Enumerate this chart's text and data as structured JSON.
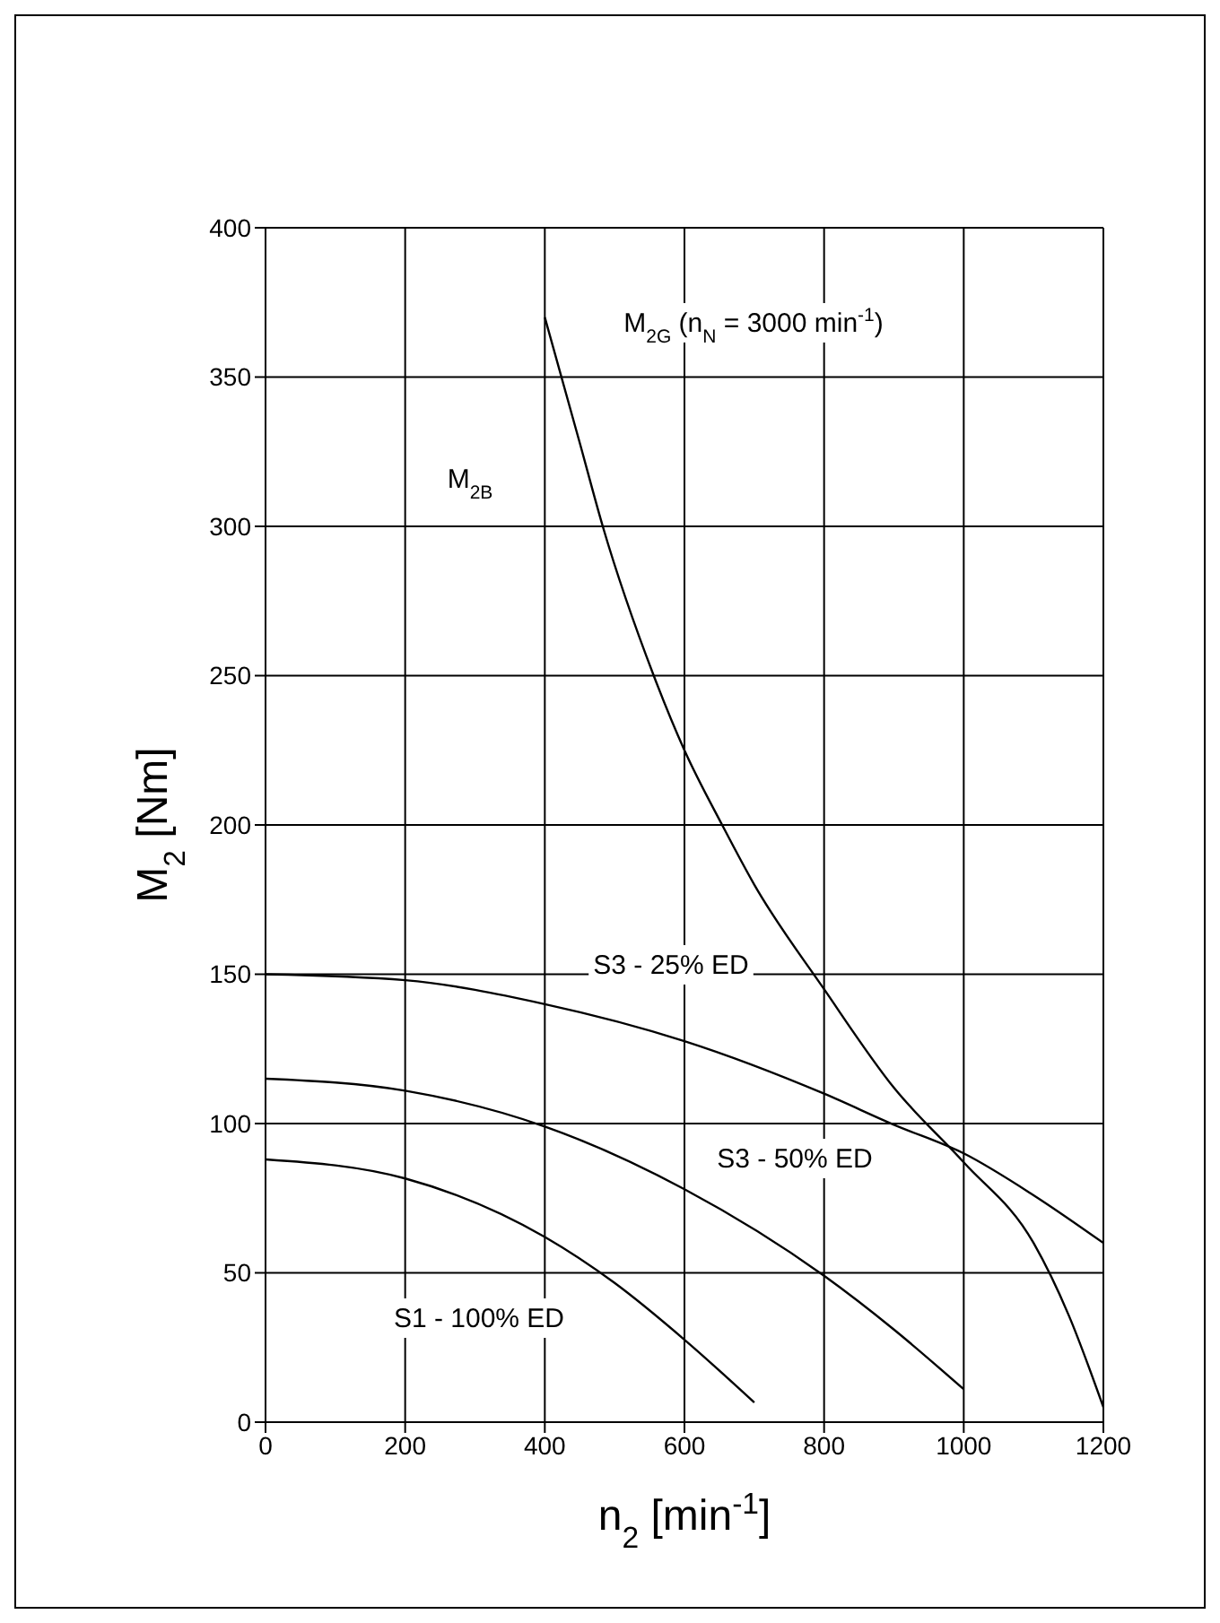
{
  "chart_data": {
    "type": "line",
    "xlabel": "n$_{2}$ [min$^{-1}$]",
    "ylabel": "M$_{2}$ [Nm]",
    "xlim": [
      0,
      1200
    ],
    "xticks": [
      0,
      200,
      400,
      600,
      800,
      1000,
      1200
    ],
    "ylim": [
      0,
      400
    ],
    "yticks": [
      0,
      50,
      100,
      150,
      200,
      250,
      300,
      350,
      400
    ],
    "grid": true,
    "marker": "none",
    "line_style": "solid",
    "series": [
      {
        "name": "S3 - 25% ED",
        "color": "#000000",
        "x": [
          0,
          200,
          400,
          600,
          800,
          900,
          1000,
          1100,
          1200
        ],
        "values": [
          150,
          148,
          140,
          127.6,
          110,
          99.6,
          90,
          76,
          60
        ]
      },
      {
        "name": "S3 - 50% ED",
        "color": "#000000",
        "x": [
          0,
          200,
          400,
          600,
          800,
          900,
          1000
        ],
        "values": [
          115,
          111,
          99,
          78,
          49,
          31,
          11
        ]
      },
      {
        "name": "S1 - 100% ED",
        "color": "#000000",
        "x": [
          0,
          200,
          400,
          500,
          600,
          700
        ],
        "values": [
          88,
          81.6,
          62,
          46.6,
          27.6,
          6.6
        ]
      },
      {
        "name": "M$_{2G}$ (n$_{N}$ = 3000 min$^{-1}$)",
        "color": "#000000",
        "x": [
          400,
          450,
          483,
          556,
          600,
          654,
          700,
          800,
          900,
          1000,
          1100,
          1150,
          1200
        ],
        "values": [
          370,
          328,
          300,
          250,
          225,
          200,
          180,
          145,
          112,
          87,
          60,
          36,
          5
        ]
      }
    ],
    "annotations": [
      "M$_{2B}$"
    ]
  }
}
